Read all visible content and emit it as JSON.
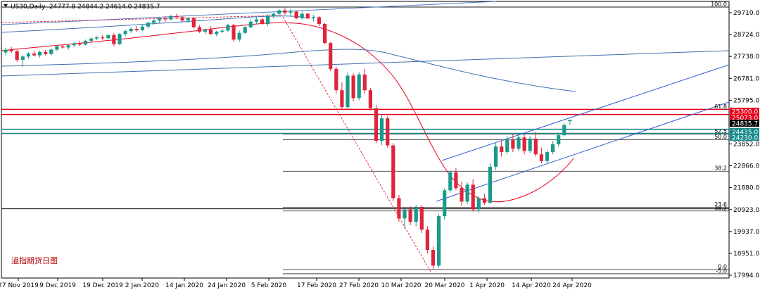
{
  "chart_data": {
    "type": "candlestick",
    "symbol_header": "US30,Daily",
    "ohlc_header": "24777.8 24844.2 24614.0 24835.7",
    "watermark": "道指期货日图",
    "ylim": [
      17800,
      30100
    ],
    "y_ticks": [
      "29710.0",
      "28724.0",
      "27738.0",
      "26781.0",
      "25795.0",
      "24835.7",
      "23852.0",
      "22866.0",
      "21880.0",
      "20923.0",
      "19937.0",
      "18951.0",
      "17994.0"
    ],
    "x_ticks": [
      "27 Nov 2019",
      "9 Dec 2019",
      "19 Dec 2019",
      "2 Jan 2020",
      "14 Jan 2020",
      "24 Jan 2020",
      "5 Feb 2020",
      "17 Feb 2020",
      "27 Feb 2020",
      "10 Mar 2020",
      "20 Mar 2020",
      "1 Apr 2020",
      "14 Apr 2020",
      "24 Apr 2020"
    ],
    "price_tags": [
      {
        "label": "25300.0",
        "value": 25300,
        "color": "#e8001c"
      },
      {
        "label": "25073.0",
        "value": 25073,
        "color": "#e8001c"
      },
      {
        "label": "24835.7",
        "value": 24835.7,
        "color": "#000000"
      },
      {
        "label": "24415.0",
        "value": 24415,
        "color": "#1a8a8a"
      },
      {
        "label": "24230.0",
        "value": 24230,
        "color": "#1a8a8a"
      }
    ],
    "fib_levels": [
      {
        "label": "100.0",
        "value": 29850
      },
      {
        "label": "61.8",
        "value": 25300
      },
      {
        "label": "52.5",
        "value": 24200
      },
      {
        "label": "50.0",
        "value": 23950
      },
      {
        "label": "38.2",
        "value": 22550
      },
      {
        "label": "23.6",
        "value": 20950
      },
      {
        "label": "38.2",
        "value": 20780
      },
      {
        "label": "0.0",
        "value": 18180
      },
      {
        "label": "-5.0",
        "value": 17990
      }
    ],
    "red_lines": [
      25300,
      25073
    ],
    "teal_lines": [
      24415,
      24230
    ],
    "black_lines": [
      29850,
      20880
    ],
    "candles": [
      {
        "o": 27830,
        "h": 28050,
        "l": 27700,
        "c": 27950
      },
      {
        "o": 27950,
        "h": 28080,
        "l": 27820,
        "c": 27880
      },
      {
        "o": 27880,
        "h": 27960,
        "l": 27400,
        "c": 27500
      },
      {
        "o": 27500,
        "h": 27700,
        "l": 27200,
        "c": 27650
      },
      {
        "o": 27650,
        "h": 27850,
        "l": 27550,
        "c": 27780
      },
      {
        "o": 27780,
        "h": 27900,
        "l": 27650,
        "c": 27700
      },
      {
        "o": 27700,
        "h": 27920,
        "l": 27600,
        "c": 27850
      },
      {
        "o": 27850,
        "h": 27950,
        "l": 27700,
        "c": 27760
      },
      {
        "o": 27760,
        "h": 28000,
        "l": 27700,
        "c": 27960
      },
      {
        "o": 27960,
        "h": 28150,
        "l": 27900,
        "c": 28100
      },
      {
        "o": 28100,
        "h": 28180,
        "l": 28000,
        "c": 28050
      },
      {
        "o": 28050,
        "h": 28200,
        "l": 27950,
        "c": 28150
      },
      {
        "o": 28150,
        "h": 28300,
        "l": 28080,
        "c": 28230
      },
      {
        "o": 28230,
        "h": 28350,
        "l": 28100,
        "c": 28180
      },
      {
        "o": 28180,
        "h": 28400,
        "l": 28150,
        "c": 28350
      },
      {
        "o": 28350,
        "h": 28500,
        "l": 28250,
        "c": 28450
      },
      {
        "o": 28450,
        "h": 28560,
        "l": 28380,
        "c": 28500
      },
      {
        "o": 28500,
        "h": 28600,
        "l": 28400,
        "c": 28460
      },
      {
        "o": 28460,
        "h": 28650,
        "l": 28420,
        "c": 28600
      },
      {
        "o": 28600,
        "h": 28700,
        "l": 28100,
        "c": 28200
      },
      {
        "o": 28200,
        "h": 28700,
        "l": 28150,
        "c": 28650
      },
      {
        "o": 28650,
        "h": 28850,
        "l": 28550,
        "c": 28780
      },
      {
        "o": 28780,
        "h": 28950,
        "l": 28700,
        "c": 28880
      },
      {
        "o": 28880,
        "h": 29000,
        "l": 28750,
        "c": 28820
      },
      {
        "o": 28820,
        "h": 29050,
        "l": 28780,
        "c": 28980
      },
      {
        "o": 28980,
        "h": 29200,
        "l": 28900,
        "c": 29150
      },
      {
        "o": 29150,
        "h": 29300,
        "l": 29050,
        "c": 29250
      },
      {
        "o": 29250,
        "h": 29400,
        "l": 29150,
        "c": 29350
      },
      {
        "o": 29350,
        "h": 29450,
        "l": 29200,
        "c": 29300
      },
      {
        "o": 29300,
        "h": 29500,
        "l": 29250,
        "c": 29450
      },
      {
        "o": 29450,
        "h": 29550,
        "l": 29300,
        "c": 29400
      },
      {
        "o": 29400,
        "h": 29450,
        "l": 29200,
        "c": 29250
      },
      {
        "o": 29250,
        "h": 29400,
        "l": 29150,
        "c": 29350
      },
      {
        "o": 29350,
        "h": 29400,
        "l": 28900,
        "c": 28950
      },
      {
        "o": 28950,
        "h": 29050,
        "l": 28700,
        "c": 28750
      },
      {
        "o": 28750,
        "h": 28900,
        "l": 28650,
        "c": 28850
      },
      {
        "o": 28850,
        "h": 29000,
        "l": 28600,
        "c": 28650
      },
      {
        "o": 28650,
        "h": 28800,
        "l": 28550,
        "c": 28750
      },
      {
        "o": 28750,
        "h": 28900,
        "l": 28700,
        "c": 28800
      },
      {
        "o": 28800,
        "h": 29100,
        "l": 28750,
        "c": 29050
      },
      {
        "o": 29050,
        "h": 29100,
        "l": 28300,
        "c": 28400
      },
      {
        "o": 28400,
        "h": 28800,
        "l": 28300,
        "c": 28700
      },
      {
        "o": 28700,
        "h": 29000,
        "l": 28650,
        "c": 28950
      },
      {
        "o": 28950,
        "h": 29300,
        "l": 28900,
        "c": 29200
      },
      {
        "o": 29200,
        "h": 29400,
        "l": 29100,
        "c": 29300
      },
      {
        "o": 29300,
        "h": 29350,
        "l": 29050,
        "c": 29100
      },
      {
        "o": 29100,
        "h": 29550,
        "l": 29000,
        "c": 29450
      },
      {
        "o": 29450,
        "h": 29600,
        "l": 29350,
        "c": 29550
      },
      {
        "o": 29550,
        "h": 29750,
        "l": 29500,
        "c": 29700
      },
      {
        "o": 29700,
        "h": 29850,
        "l": 29500,
        "c": 29600
      },
      {
        "o": 29600,
        "h": 29750,
        "l": 29450,
        "c": 29650
      },
      {
        "o": 29650,
        "h": 29700,
        "l": 29300,
        "c": 29350
      },
      {
        "o": 29350,
        "h": 29650,
        "l": 29300,
        "c": 29550
      },
      {
        "o": 29550,
        "h": 29600,
        "l": 29300,
        "c": 29350
      },
      {
        "o": 29350,
        "h": 29500,
        "l": 29200,
        "c": 29400
      },
      {
        "o": 29400,
        "h": 29450,
        "l": 29000,
        "c": 29100
      },
      {
        "o": 29100,
        "h": 29150,
        "l": 28200,
        "c": 28250
      },
      {
        "o": 28250,
        "h": 28300,
        "l": 27000,
        "c": 27100
      },
      {
        "o": 27100,
        "h": 27200,
        "l": 26000,
        "c": 26150
      },
      {
        "o": 26150,
        "h": 26500,
        "l": 25300,
        "c": 25400
      },
      {
        "o": 25400,
        "h": 26950,
        "l": 25300,
        "c": 26800
      },
      {
        "o": 26800,
        "h": 26900,
        "l": 25650,
        "c": 25800
      },
      {
        "o": 25800,
        "h": 26950,
        "l": 25700,
        "c": 26850
      },
      {
        "o": 26850,
        "h": 27100,
        "l": 26000,
        "c": 26150
      },
      {
        "o": 26150,
        "h": 26250,
        "l": 25250,
        "c": 25350
      },
      {
        "o": 25350,
        "h": 25500,
        "l": 23800,
        "c": 23900
      },
      {
        "o": 23900,
        "h": 25100,
        "l": 23700,
        "c": 24900
      },
      {
        "o": 24900,
        "h": 25000,
        "l": 23600,
        "c": 23700
      },
      {
        "o": 23700,
        "h": 23800,
        "l": 21200,
        "c": 21350
      },
      {
        "o": 21350,
        "h": 21500,
        "l": 20300,
        "c": 20450
      },
      {
        "o": 20450,
        "h": 20950,
        "l": 20000,
        "c": 20850
      },
      {
        "o": 20850,
        "h": 21000,
        "l": 20150,
        "c": 20300
      },
      {
        "o": 20300,
        "h": 21050,
        "l": 20100,
        "c": 20950
      },
      {
        "o": 20950,
        "h": 21050,
        "l": 19800,
        "c": 19950
      },
      {
        "o": 19950,
        "h": 20100,
        "l": 18900,
        "c": 19050
      },
      {
        "o": 19050,
        "h": 19200,
        "l": 18200,
        "c": 18350
      },
      {
        "o": 18350,
        "h": 20650,
        "l": 18250,
        "c": 20550
      },
      {
        "o": 20550,
        "h": 21800,
        "l": 20400,
        "c": 21700
      },
      {
        "o": 21700,
        "h": 22600,
        "l": 21600,
        "c": 22500
      },
      {
        "o": 22500,
        "h": 22700,
        "l": 21700,
        "c": 21800
      },
      {
        "o": 21800,
        "h": 22100,
        "l": 21000,
        "c": 21200
      },
      {
        "o": 21200,
        "h": 22050,
        "l": 21100,
        "c": 21950
      },
      {
        "o": 21950,
        "h": 22200,
        "l": 20750,
        "c": 20850
      },
      {
        "o": 20850,
        "h": 21450,
        "l": 20700,
        "c": 21350
      },
      {
        "o": 21350,
        "h": 21550,
        "l": 21050,
        "c": 21150
      },
      {
        "o": 21150,
        "h": 22900,
        "l": 21100,
        "c": 22750
      },
      {
        "o": 22750,
        "h": 23800,
        "l": 22600,
        "c": 23650
      },
      {
        "o": 23650,
        "h": 23900,
        "l": 23200,
        "c": 23400
      },
      {
        "o": 23400,
        "h": 24100,
        "l": 23300,
        "c": 23950
      },
      {
        "o": 23950,
        "h": 24200,
        "l": 23400,
        "c": 23550
      },
      {
        "o": 23550,
        "h": 24150,
        "l": 23450,
        "c": 24050
      },
      {
        "o": 24050,
        "h": 24200,
        "l": 23300,
        "c": 23450
      },
      {
        "o": 23450,
        "h": 24100,
        "l": 23350,
        "c": 24000
      },
      {
        "o": 24000,
        "h": 24300,
        "l": 23200,
        "c": 23300
      },
      {
        "o": 23300,
        "h": 23600,
        "l": 22900,
        "c": 23000
      },
      {
        "o": 23000,
        "h": 23500,
        "l": 22900,
        "c": 23400
      },
      {
        "o": 23400,
        "h": 23900,
        "l": 23300,
        "c": 23750
      },
      {
        "o": 23750,
        "h": 24250,
        "l": 23650,
        "c": 24150
      },
      {
        "o": 24150,
        "h": 24700,
        "l": 24100,
        "c": 24600
      },
      {
        "o": 24777.8,
        "h": 24844.2,
        "l": 24614.0,
        "c": 24835.7
      }
    ]
  }
}
